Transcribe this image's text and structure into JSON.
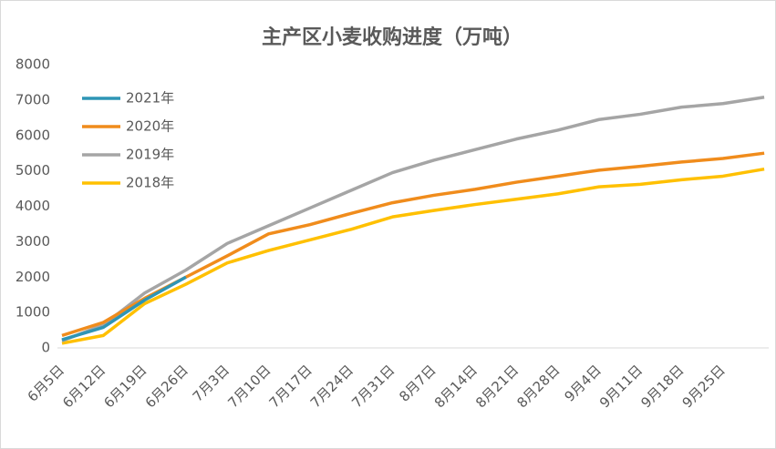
{
  "chart_data": {
    "type": "line",
    "title": "主产区小麦收购进度（万吨）",
    "categories": [
      "6月5日",
      "6月12日",
      "6月19日",
      "6月26日",
      "7月3日",
      "7月10日",
      "7月17日",
      "7月24日",
      "7月31日",
      "8月7日",
      "8月14日",
      "8月21日",
      "8月28日",
      "9月4日",
      "9月11日",
      "9月18日",
      "9月25日",
      null
    ],
    "series": [
      {
        "name": "2021年",
        "color": "#2e95b5",
        "values": [
          230,
          580,
          1350,
          2000,
          null,
          null,
          null,
          null,
          null,
          null,
          null,
          null,
          null,
          null,
          null,
          null,
          null,
          null
        ]
      },
      {
        "name": "2020年",
        "color": "#f08c1c",
        "values": [
          350,
          720,
          1400,
          2000,
          2600,
          3220,
          3480,
          3800,
          4100,
          4310,
          4480,
          4680,
          4850,
          5020,
          5130,
          5250,
          5350,
          5500
        ]
      },
      {
        "name": "2019年",
        "color": "#a5a5a5",
        "values": [
          200,
          650,
          1550,
          2200,
          2950,
          3450,
          3950,
          4450,
          4950,
          5300,
          5600,
          5900,
          6150,
          6450,
          6600,
          6800,
          6900,
          7080
        ]
      },
      {
        "name": "2018年",
        "color": "#ffc000",
        "values": [
          130,
          350,
          1250,
          1800,
          2400,
          2750,
          3050,
          3350,
          3700,
          3880,
          4050,
          4200,
          4350,
          4550,
          4620,
          4750,
          4850,
          5050
        ]
      }
    ],
    "ylim": [
      0,
      8000
    ],
    "yticks": [
      0,
      1000,
      2000,
      3000,
      4000,
      5000,
      6000,
      7000,
      8000
    ],
    "legend": "upper left"
  }
}
